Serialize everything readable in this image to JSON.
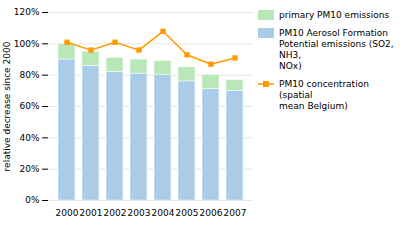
{
  "chart_data": {
    "type": "bar",
    "stacked": true,
    "ylabel": "relative decrease since 2000",
    "categories": [
      "2000",
      "2001",
      "2002",
      "2003",
      "2004",
      "2005",
      "2006",
      "2007"
    ],
    "series": [
      {
        "name": "PM10 Aerosol Formation\nPotential emissions (SO2, NH3,\nNOx)",
        "color": "#aacce8",
        "values": [
          90,
          86,
          82,
          81,
          80,
          76,
          71,
          70
        ]
      },
      {
        "name": "primary PM10 emissions",
        "color": "#b8e8b8",
        "values": [
          10,
          9,
          9,
          9,
          9,
          9,
          9,
          7
        ]
      },
      {
        "name": "PM10 concentration (spatial\nmean Belgium)",
        "type": "line",
        "marker": "square",
        "color": "#ff9900",
        "values": [
          101,
          96,
          101,
          96,
          108,
          93,
          87,
          91
        ]
      }
    ],
    "ylim": [
      0,
      120
    ],
    "yticks": [
      {
        "value": 0,
        "label": "0%"
      },
      {
        "value": 20,
        "label": "20%"
      },
      {
        "value": 40,
        "label": "40%"
      },
      {
        "value": 60,
        "label": "60%"
      },
      {
        "value": 80,
        "label": "80%"
      },
      {
        "value": 100,
        "label": "100%"
      },
      {
        "value": 120,
        "label": "120%"
      }
    ],
    "grid": true,
    "legend": "right"
  }
}
